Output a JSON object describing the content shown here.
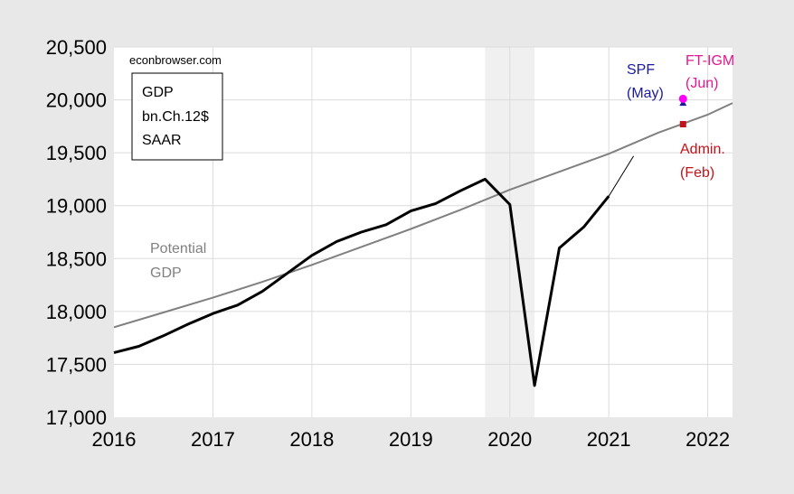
{
  "chart_data": {
    "type": "line",
    "credit": "econbrowser.com",
    "info_box": [
      "GDP",
      "bn.Ch.12$",
      "SAAR"
    ],
    "x_ticks": [
      "2016",
      "2017",
      "2018",
      "2019",
      "2020",
      "2021",
      "2022"
    ],
    "y_ticks": [
      "17,000",
      "17,500",
      "18,000",
      "18,500",
      "19,000",
      "19,500",
      "20,000",
      "20,500"
    ],
    "xlim": [
      2016.0,
      2022.25
    ],
    "ylim": [
      17000,
      20500
    ],
    "grid": true,
    "recession_shading": [
      2019.75,
      2020.25
    ],
    "series": [
      {
        "name": "GDP",
        "color": "#000000",
        "x": [
          2016.0,
          2016.25,
          2016.5,
          2016.75,
          2017.0,
          2017.25,
          2017.5,
          2017.75,
          2018.0,
          2018.25,
          2018.5,
          2018.75,
          2019.0,
          2019.25,
          2019.5,
          2019.75,
          2020.0,
          2020.25,
          2020.5,
          2020.75,
          2021.0
        ],
        "y": [
          17610,
          17670,
          17770,
          17880,
          17980,
          18060,
          18190,
          18360,
          18530,
          18660,
          18750,
          18820,
          18950,
          19020,
          19140,
          19250,
          19010,
          17300,
          18600,
          18800,
          19090
        ]
      },
      {
        "name": "Potential GDP",
        "label_lines": [
          "Potential",
          "GDP"
        ],
        "color": "#808080",
        "x": [
          2016.0,
          2016.5,
          2017.0,
          2017.5,
          2018.0,
          2018.5,
          2019.0,
          2019.5,
          2020.0,
          2020.5,
          2021.0,
          2021.5,
          2022.0,
          2022.25
        ],
        "y": [
          17850,
          17990,
          18130,
          18280,
          18440,
          18610,
          18780,
          18960,
          19150,
          19320,
          19490,
          19690,
          19860,
          19970
        ]
      }
    ],
    "extension": {
      "x": [
        2021.0,
        2021.25
      ],
      "y": [
        19090,
        19470
      ],
      "color": "#000000"
    },
    "forecasts": [
      {
        "name": "SPF",
        "label_lines": [
          "SPF",
          "(May)"
        ],
        "x": 2021.75,
        "y": 19970,
        "color": "#1a1a9c",
        "marker": "triangle"
      },
      {
        "name": "FT-IGM",
        "label_lines": [
          "FT-IGM",
          "(Jun)"
        ],
        "x": 2021.75,
        "y": 20010,
        "color": "#ff00ff",
        "marker": "circle"
      },
      {
        "name": "Admin.",
        "label_lines": [
          "Admin.",
          "(Feb)"
        ],
        "x": 2021.75,
        "y": 19770,
        "color": "#c0141b",
        "marker": "square"
      }
    ]
  }
}
